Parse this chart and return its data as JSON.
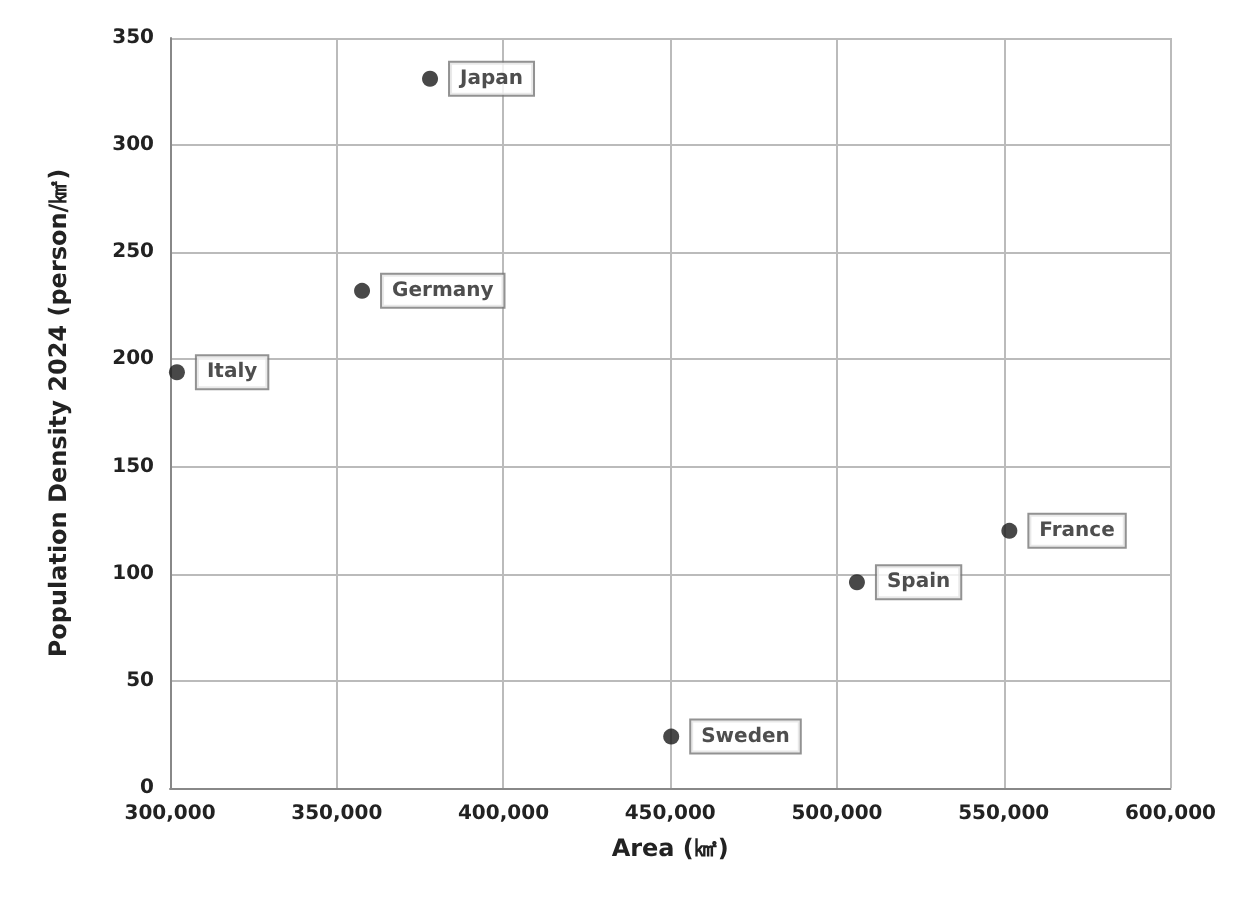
{
  "chart_data": {
    "type": "scatter",
    "xlabel": "Area (㎢)",
    "ylabel": "Population Density 2024 (person/㎢)",
    "x": [
      377975,
      357588,
      302073,
      551695,
      505990,
      450295
    ],
    "series": [
      {
        "color": "#1a1a1a",
        "values": [
          331,
          232,
          194,
          120,
          96,
          24
        ]
      }
    ],
    "annotations": [
      {
        "text": "Japan",
        "x": 377975,
        "y": 331
      },
      {
        "text": "Germany",
        "x": 357588,
        "y": 232
      },
      {
        "text": "Italy",
        "x": 302073,
        "y": 194
      },
      {
        "text": "France",
        "x": 551695,
        "y": 120
      },
      {
        "text": "Spain",
        "x": 505990,
        "y": 96
      },
      {
        "text": "Sweden",
        "x": 450295,
        "y": 24
      }
    ],
    "xlim": [
      300000,
      600000
    ],
    "xticks": [
      {
        "value": 300000,
        "label": "300,000"
      },
      {
        "value": 350000,
        "label": "350,000"
      },
      {
        "value": 400000,
        "label": "400,000"
      },
      {
        "value": 450000,
        "label": "450,000"
      },
      {
        "value": 500000,
        "label": "500,000"
      },
      {
        "value": 550000,
        "label": "550,000"
      },
      {
        "value": 600000,
        "label": "600,000"
      }
    ],
    "ylim": [
      0,
      350
    ],
    "yticks": [
      0,
      50,
      100,
      150,
      200,
      250,
      300,
      350
    ],
    "grid": true,
    "marker": "circle"
  }
}
